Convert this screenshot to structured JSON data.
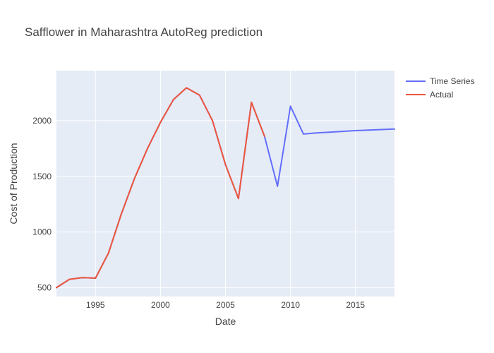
{
  "chart_data": {
    "type": "line",
    "title": "Safflower in Maharashtra AutoReg prediction",
    "xlabel": "Date",
    "ylabel": "Cost of Production",
    "xlim": [
      1992,
      2018
    ],
    "ylim": [
      420,
      2450
    ],
    "xticks": [
      1995,
      2000,
      2005,
      2010,
      2015
    ],
    "yticks": [
      500,
      1000,
      1500,
      2000
    ],
    "grid": true,
    "legend_position": "top-right",
    "series": [
      {
        "name": "Time Series",
        "color": "#636efa",
        "x": [
          1992,
          1993,
          1994,
          1995,
          1996,
          1997,
          1998,
          1999,
          2000,
          2001,
          2002,
          2003,
          2004,
          2005,
          2006,
          2007,
          2008,
          2009,
          2010,
          2011,
          2012,
          2013,
          2014,
          2015,
          2016,
          2017,
          2018
        ],
        "y": [
          500,
          575,
          590,
          585,
          810,
          1165,
          1480,
          1750,
          1985,
          2190,
          2295,
          2230,
          2000,
          1605,
          1300,
          2165,
          1860,
          1410,
          2130,
          1880,
          1890,
          1897,
          1904,
          1911,
          1916,
          1920,
          1925
        ]
      },
      {
        "name": "Actual",
        "color": "#ef553b",
        "x": [
          1992,
          1993,
          1994,
          1995,
          1996,
          1997,
          1998,
          1999,
          2000,
          2001,
          2002,
          2003,
          2004,
          2005,
          2006,
          2007,
          2008
        ],
        "y": [
          500,
          575,
          590,
          585,
          810,
          1165,
          1480,
          1750,
          1985,
          2190,
          2295,
          2230,
          2000,
          1605,
          1300,
          2165,
          1860
        ]
      }
    ]
  }
}
